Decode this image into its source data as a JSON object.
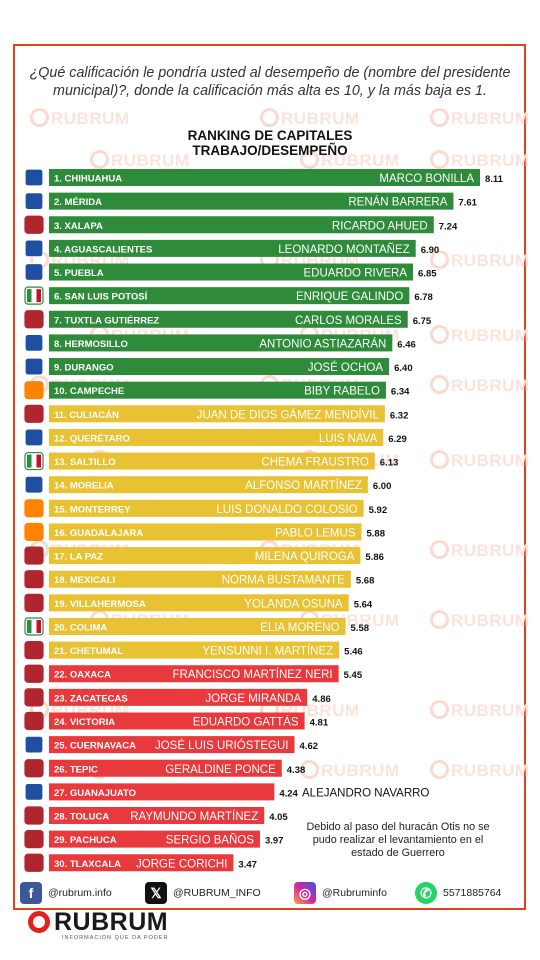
{
  "question": "¿Qué calificación le pondría usted al desempeño de (nombre del presidente municipal)?, donde la calificación más alta es 10, y la más baja es 1.",
  "watermark": "RUBRUM",
  "colors": {
    "green": "#2e8b3a",
    "yellow": "#e8c233",
    "red": "#e8393c",
    "frame": "#e4401c"
  },
  "chart_data": {
    "type": "bar",
    "orientation": "horizontal",
    "title": "RANKING DE CAPITALES",
    "subtitle": "TRABAJO/DESEMPEÑO",
    "xlim": [
      0,
      8.3
    ],
    "rows": [
      {
        "city": "1. CHIHUAHUA",
        "name": "MARCO BONILLA",
        "value": 8.11,
        "value_label": "8.11",
        "party": "PAN",
        "color": "green"
      },
      {
        "city": "2. MÉRIDA",
        "name": "RENÁN BARRERA",
        "value": 7.61,
        "value_label": "7.61",
        "party": "PAN",
        "color": "green"
      },
      {
        "city": "3. XALAPA",
        "name": "RICARDO AHUED",
        "value": 7.24,
        "value_label": "7.24",
        "party": "MORENA",
        "color": "green"
      },
      {
        "city": "4. AGUASCALIENTES",
        "name": "LEONARDO MONTAÑEZ",
        "value": 6.9,
        "value_label": "6.90",
        "party": "PAN",
        "color": "green"
      },
      {
        "city": "5. PUEBLA",
        "name": "EDUARDO RIVERA",
        "value": 6.85,
        "value_label": "6.85",
        "party": "PAN",
        "color": "green"
      },
      {
        "city": "6. SAN LUIS POTOSÍ",
        "name": "ENRIQUE GALINDO",
        "value": 6.78,
        "value_label": "6.78",
        "party": "PRI",
        "color": "green"
      },
      {
        "city": "7. TUXTLA GUTIÉRREZ",
        "name": "CARLOS MORALES",
        "value": 6.75,
        "value_label": "6.75",
        "party": "MORENA",
        "color": "green"
      },
      {
        "city": "8. HERMOSILLO",
        "name": "ANTONIO ASTIAZARÁN",
        "value": 6.46,
        "value_label": "6.46",
        "party": "PAN",
        "color": "green"
      },
      {
        "city": "9. DURANGO",
        "name": "JOSÉ OCHOA",
        "value": 6.4,
        "value_label": "6.40",
        "party": "PAN",
        "color": "green"
      },
      {
        "city": "10. CAMPECHE",
        "name": "BIBY RABELO",
        "value": 6.34,
        "value_label": "6.34",
        "party": "MC",
        "color": "green"
      },
      {
        "city": "11. CULIACÁN",
        "name": "JUAN DE DIOS GÁMEZ MENDÍVIL",
        "value": 6.32,
        "value_label": "6.32",
        "party": "MORENA",
        "color": "yellow"
      },
      {
        "city": "12. QUERÉTARO",
        "name": "LUIS NAVA",
        "value": 6.29,
        "value_label": "6.29",
        "party": "PAN",
        "color": "yellow"
      },
      {
        "city": "13. SALTILLO",
        "name": "CHEMA FRAUSTRO",
        "value": 6.13,
        "value_label": "6.13",
        "party": "PRI",
        "color": "yellow"
      },
      {
        "city": "14. MORELIA",
        "name": "ALFONSO MARTÍNEZ",
        "value": 6.0,
        "value_label": "6.00",
        "party": "PAN",
        "color": "yellow"
      },
      {
        "city": "15. MONTERREY",
        "name": "LUIS DONALDO COLOSIO",
        "value": 5.92,
        "value_label": "5.92",
        "party": "MC",
        "color": "yellow"
      },
      {
        "city": "16. GUADALAJARA",
        "name": "PABLO LEMUS",
        "value": 5.88,
        "value_label": "5.88",
        "party": "MC",
        "color": "yellow"
      },
      {
        "city": "17. LA PAZ",
        "name": "MILENA QUIROGA",
        "value": 5.86,
        "value_label": "5.86",
        "party": "MORENA",
        "color": "yellow"
      },
      {
        "city": "18. MEXICALI",
        "name": "NORMA BUSTAMANTE",
        "value": 5.68,
        "value_label": "5.68",
        "party": "MORENA",
        "color": "yellow"
      },
      {
        "city": "19. VILLAHERMOSA",
        "name": "YOLANDA OSUNA",
        "value": 5.64,
        "value_label": "5.64",
        "party": "MORENA",
        "color": "yellow"
      },
      {
        "city": "20. COLIMA",
        "name": "ELIA MORENO",
        "value": 5.58,
        "value_label": "5.58",
        "party": "PRI",
        "color": "yellow"
      },
      {
        "city": "21. CHETUMAL",
        "name": "YENSUNNI I. MARTÍNEZ",
        "value": 5.46,
        "value_label": "5.46",
        "party": "MORENA",
        "color": "yellow"
      },
      {
        "city": "22. OAXACA",
        "name": "FRANCISCO MARTÍNEZ NERI",
        "value": 5.45,
        "value_label": "5.45",
        "party": "MORENA",
        "color": "red"
      },
      {
        "city": "23. ZACATECAS",
        "name": "JORGE MIRANDA",
        "value": 4.86,
        "value_label": "4.86",
        "party": "MORENA",
        "color": "red"
      },
      {
        "city": "24. VICTORIA",
        "name": "EDUARDO GATTÁS",
        "value": 4.81,
        "value_label": "4.81",
        "party": "MORENA",
        "color": "red"
      },
      {
        "city": "25. CUERNAVACA",
        "name": "JOSÉ LUIS URIÓSTEGUI",
        "value": 4.62,
        "value_label": "4.62",
        "party": "PAN",
        "color": "red"
      },
      {
        "city": "26. TEPIC",
        "name": "GERALDINE PONCE",
        "value": 4.38,
        "value_label": "4.38",
        "party": "MORENA",
        "color": "red"
      },
      {
        "city": "27. GUANAJUATO",
        "name": "ALEJANDRO NAVARRO",
        "value": 4.24,
        "value_label": "4.24",
        "party": "PAN",
        "color": "red"
      },
      {
        "city": "28. TOLUCA",
        "name": "RAYMUNDO MARTÍNEZ",
        "value": 4.05,
        "value_label": "4.05",
        "party": "MORENA",
        "color": "red"
      },
      {
        "city": "29. PACHUCA",
        "name": "SERGIO BAÑOS",
        "value": 3.97,
        "value_label": "3.97",
        "party": "MORENA",
        "color": "red"
      },
      {
        "city": "30. TLAXCALA",
        "name": "JORGE CORICHI",
        "value": 3.47,
        "value_label": "3.47",
        "party": "MORENA",
        "color": "red"
      }
    ]
  },
  "note": "Debido al paso del huracán Otis no se pudo realizar el levantamiento en el estado de Guerrero",
  "footer": {
    "facebook": "@rubrum.info",
    "x": "@RUBRUM_INFO",
    "instagram": "@Rubruminfo",
    "whatsapp": "5571885764"
  },
  "logo": {
    "word": "RUBRUM",
    "tagline": "INFORMACIÓN QUE DA PODER"
  },
  "party_badges": {
    "PAN": "PAN",
    "PRI": "PRI",
    "MORENA": "morena",
    "MC": "MC"
  }
}
